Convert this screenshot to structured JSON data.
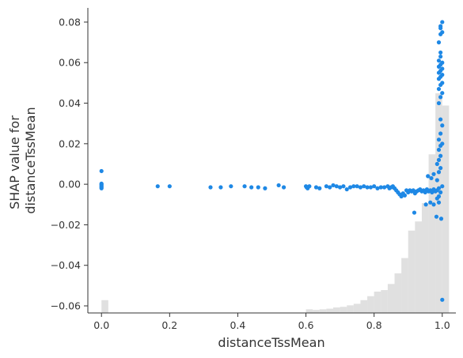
{
  "chart_data": {
    "type": "scatter",
    "xlabel": "distanceTssMean",
    "ylabel_lines": [
      "SHAP value for",
      "distanceTssMean"
    ],
    "xlim": [
      -0.04,
      1.04
    ],
    "ylim": [
      -0.0635,
      0.087
    ],
    "x_ticks": [
      0.0,
      0.2,
      0.4,
      0.6,
      0.8,
      1.0
    ],
    "x_tick_labels": [
      "0.0",
      "0.2",
      "0.4",
      "0.6",
      "0.8",
      "1.0"
    ],
    "y_ticks": [
      -0.06,
      -0.04,
      -0.02,
      0.0,
      0.02,
      0.04,
      0.06,
      0.08
    ],
    "y_tick_labels": [
      "−0.06",
      "−0.04",
      "−0.02",
      "0.00",
      "0.02",
      "0.04",
      "0.06",
      "0.08"
    ],
    "point_color": "#1E88E5",
    "histogram_color": "#cccccc",
    "grid": false,
    "series": [
      {
        "points": [
          [
            0.0,
            0.0065
          ],
          [
            0.0,
            0.0
          ],
          [
            0.0,
            -0.0005
          ],
          [
            0.0,
            -0.001
          ],
          [
            0.0,
            -0.0015
          ],
          [
            0.0,
            -0.002
          ],
          [
            0.0,
            0.0003
          ],
          [
            0.165,
            -0.001
          ],
          [
            0.2,
            -0.001
          ],
          [
            0.32,
            -0.0015
          ],
          [
            0.35,
            -0.0015
          ],
          [
            0.38,
            -0.001
          ],
          [
            0.42,
            -0.001
          ],
          [
            0.44,
            -0.0015
          ],
          [
            0.46,
            -0.0015
          ],
          [
            0.48,
            -0.002
          ],
          [
            0.52,
            -0.0005
          ],
          [
            0.535,
            -0.0015
          ],
          [
            0.6,
            -0.001
          ],
          [
            0.602,
            -0.0015
          ],
          [
            0.605,
            -0.002
          ],
          [
            0.61,
            -0.001
          ],
          [
            0.63,
            -0.0015
          ],
          [
            0.64,
            -0.002
          ],
          [
            0.66,
            -0.001
          ],
          [
            0.67,
            -0.0015
          ],
          [
            0.68,
            -0.0005
          ],
          [
            0.69,
            -0.001
          ],
          [
            0.7,
            -0.0015
          ],
          [
            0.71,
            -0.001
          ],
          [
            0.72,
            -0.0025
          ],
          [
            0.73,
            -0.0015
          ],
          [
            0.74,
            -0.001
          ],
          [
            0.75,
            -0.001
          ],
          [
            0.76,
            -0.0015
          ],
          [
            0.77,
            -0.001
          ],
          [
            0.78,
            -0.0015
          ],
          [
            0.79,
            -0.0015
          ],
          [
            0.8,
            -0.001
          ],
          [
            0.81,
            -0.002
          ],
          [
            0.82,
            -0.0015
          ],
          [
            0.83,
            -0.0015
          ],
          [
            0.84,
            -0.001
          ],
          [
            0.845,
            -0.002
          ],
          [
            0.85,
            -0.0015
          ],
          [
            0.855,
            -0.001
          ],
          [
            0.86,
            -0.002
          ],
          [
            0.865,
            -0.003
          ],
          [
            0.87,
            -0.004
          ],
          [
            0.875,
            -0.005
          ],
          [
            0.88,
            -0.006
          ],
          [
            0.885,
            -0.0045
          ],
          [
            0.89,
            -0.0055
          ],
          [
            0.895,
            -0.003
          ],
          [
            0.9,
            -0.004
          ],
          [
            0.905,
            -0.003
          ],
          [
            0.91,
            -0.0035
          ],
          [
            0.915,
            -0.003
          ],
          [
            0.92,
            -0.0045
          ],
          [
            0.925,
            -0.0035
          ],
          [
            0.93,
            -0.003
          ],
          [
            0.935,
            -0.0025
          ],
          [
            0.94,
            -0.0035
          ],
          [
            0.945,
            -0.003
          ],
          [
            0.95,
            -0.004
          ],
          [
            0.955,
            -0.0025
          ],
          [
            0.96,
            -0.0035
          ],
          [
            0.965,
            -0.003
          ],
          [
            0.97,
            -0.004
          ],
          [
            0.975,
            -0.0025
          ],
          [
            0.98,
            -0.0035
          ],
          [
            0.985,
            -0.003
          ],
          [
            0.99,
            -0.002
          ],
          [
            0.995,
            -0.004
          ],
          [
            1.0,
            -0.001
          ],
          [
            0.918,
            -0.014
          ],
          [
            0.952,
            -0.01
          ],
          [
            0.965,
            -0.009
          ],
          [
            0.975,
            -0.01
          ],
          [
            0.983,
            -0.016
          ],
          [
            0.997,
            -0.017
          ],
          [
            0.99,
            -0.006
          ],
          [
            0.985,
            -0.007
          ],
          [
            0.99,
            -0.009
          ],
          [
            0.958,
            0.004
          ],
          [
            0.968,
            0.003
          ],
          [
            0.975,
            0.005
          ],
          [
            0.985,
            0.002
          ],
          [
            0.99,
            0.006
          ],
          [
            0.995,
            0.008
          ],
          [
            0.985,
            0.01
          ],
          [
            0.99,
            0.012
          ],
          [
            0.995,
            0.014
          ],
          [
            0.99,
            0.017
          ],
          [
            0.995,
            0.019
          ],
          [
            1.0,
            0.02
          ],
          [
            0.99,
            0.022
          ],
          [
            0.995,
            0.025
          ],
          [
            1.0,
            0.029
          ],
          [
            0.995,
            0.032
          ],
          [
            0.99,
            0.04
          ],
          [
            0.995,
            0.043
          ],
          [
            1.0,
            0.045
          ],
          [
            0.99,
            0.047
          ],
          [
            0.995,
            0.049
          ],
          [
            1.0,
            0.05
          ],
          [
            0.99,
            0.052
          ],
          [
            0.995,
            0.053
          ],
          [
            1.0,
            0.054
          ],
          [
            0.99,
            0.055
          ],
          [
            0.995,
            0.056
          ],
          [
            1.0,
            0.057
          ],
          [
            0.99,
            0.058
          ],
          [
            0.995,
            0.059
          ],
          [
            1.0,
            0.06
          ],
          [
            0.99,
            0.061
          ],
          [
            0.995,
            0.063
          ],
          [
            0.995,
            0.065
          ],
          [
            0.99,
            0.07
          ],
          [
            0.995,
            0.074
          ],
          [
            1.0,
            0.075
          ],
          [
            0.995,
            0.077
          ],
          [
            0.995,
            0.078
          ],
          [
            1.0,
            0.08
          ],
          [
            1.0,
            -0.057
          ]
        ]
      }
    ],
    "histogram": {
      "bins": [
        {
          "x0": 0.0,
          "x1": 0.02,
          "h": 0.42
        },
        {
          "x0": 0.6,
          "x1": 0.62,
          "h": 0.12
        },
        {
          "x0": 0.62,
          "x1": 0.64,
          "h": 0.1
        },
        {
          "x0": 0.64,
          "x1": 0.66,
          "h": 0.12
        },
        {
          "x0": 0.66,
          "x1": 0.68,
          "h": 0.14
        },
        {
          "x0": 0.68,
          "x1": 0.7,
          "h": 0.18
        },
        {
          "x0": 0.7,
          "x1": 0.72,
          "h": 0.2
        },
        {
          "x0": 0.72,
          "x1": 0.74,
          "h": 0.25
        },
        {
          "x0": 0.74,
          "x1": 0.76,
          "h": 0.3
        },
        {
          "x0": 0.76,
          "x1": 0.78,
          "h": 0.42
        },
        {
          "x0": 0.78,
          "x1": 0.8,
          "h": 0.55
        },
        {
          "x0": 0.8,
          "x1": 0.82,
          "h": 0.7
        },
        {
          "x0": 0.82,
          "x1": 0.84,
          "h": 0.75
        },
        {
          "x0": 0.84,
          "x1": 0.86,
          "h": 0.95
        },
        {
          "x0": 0.86,
          "x1": 0.88,
          "h": 1.3
        },
        {
          "x0": 0.88,
          "x1": 0.9,
          "h": 1.8
        },
        {
          "x0": 0.9,
          "x1": 0.92,
          "h": 2.7
        },
        {
          "x0": 0.92,
          "x1": 0.94,
          "h": 3.0
        },
        {
          "x0": 0.94,
          "x1": 0.96,
          "h": 3.6
        },
        {
          "x0": 0.96,
          "x1": 0.98,
          "h": 5.2
        },
        {
          "x0": 0.98,
          "x1": 1.0,
          "h": 7.2
        },
        {
          "x0": 1.0,
          "x1": 1.02,
          "h": 6.8
        }
      ]
    }
  }
}
